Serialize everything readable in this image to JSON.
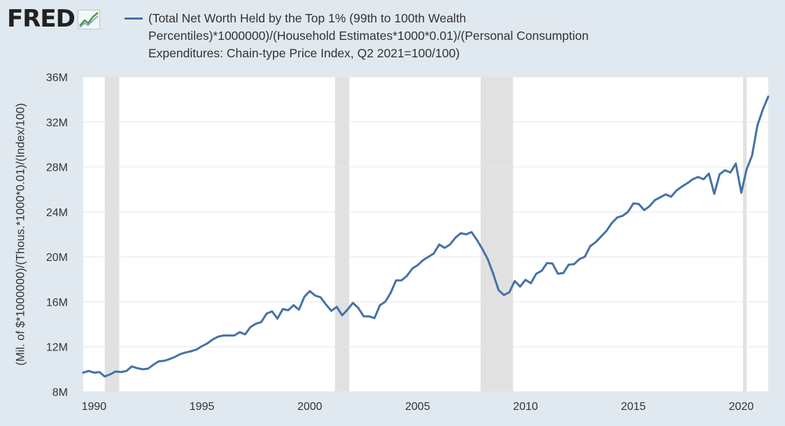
{
  "header": {
    "logo_text": "FRED",
    "legend_line1": "(Total Net Worth Held by the Top 1% (99th to 100th Wealth",
    "legend_line2": "Percentiles)*1000000)/(Household Estimates*1000*0.01)/(Personal Consumption",
    "legend_line3": "Expenditures: Chain-type Price Index, Q2 2021=100/100)"
  },
  "colors": {
    "series": "#4572a7",
    "recession": "#e1e1e1",
    "background": "#e1e9f0",
    "plot": "#ffffff"
  },
  "chart_data": {
    "type": "line",
    "title": "(Total Net Worth Held by the Top 1% (99th to 100th Wealth Percentiles)*1000000)/(Household Estimates*1000*0.01)/(Personal Consumption Expenditures: Chain-type Price Index, Q2 2021=100/100)",
    "xlabel": "",
    "ylabel": "(Mil. of $*1000000)/(Thous.*1000*0.01)/(Index/100)",
    "xlim": [
      1989.5,
      2021.25
    ],
    "ylim": [
      8,
      36
    ],
    "yticks": [
      8,
      12,
      16,
      20,
      24,
      28,
      32,
      36
    ],
    "ytick_labels": [
      "8M",
      "12M",
      "16M",
      "20M",
      "24M",
      "28M",
      "32M",
      "36M"
    ],
    "xticks": [
      1990,
      1995,
      2000,
      2005,
      2010,
      2015,
      2020
    ],
    "xtick_labels": [
      "1990",
      "1995",
      "2000",
      "2005",
      "2010",
      "2015",
      "2020"
    ],
    "recessions": [
      [
        1990.5,
        1991.17
      ],
      [
        2001.17,
        2001.83
      ],
      [
        2007.92,
        2009.42
      ],
      [
        2020.08,
        2020.25
      ]
    ],
    "series": [
      {
        "name": "(Total Net Worth Held by the Top 1% (99th to 100th Wealth Percentiles)*1000000)/(Household Estimates*1000*0.01)/(Personal Consumption Expenditures: Chain-type Price Index, Q2 2021=100/100)",
        "x": [
          1989.5,
          1989.75,
          1990,
          1990.25,
          1990.5,
          1990.75,
          1991,
          1991.25,
          1991.5,
          1991.75,
          1992,
          1992.25,
          1992.5,
          1992.75,
          1993,
          1993.25,
          1993.5,
          1993.75,
          1994,
          1994.25,
          1994.5,
          1994.75,
          1995,
          1995.25,
          1995.5,
          1995.75,
          1996,
          1996.25,
          1996.5,
          1996.75,
          1997,
          1997.25,
          1997.5,
          1997.75,
          1998,
          1998.25,
          1998.5,
          1998.75,
          1999,
          1999.25,
          1999.5,
          1999.75,
          2000,
          2000.25,
          2000.5,
          2000.75,
          2001,
          2001.25,
          2001.5,
          2001.75,
          2002,
          2002.25,
          2002.5,
          2002.75,
          2003,
          2003.25,
          2003.5,
          2003.75,
          2004,
          2004.25,
          2004.5,
          2004.75,
          2005,
          2005.25,
          2005.5,
          2005.75,
          2006,
          2006.25,
          2006.5,
          2006.75,
          2007,
          2007.25,
          2007.5,
          2007.75,
          2008,
          2008.25,
          2008.5,
          2008.75,
          2009,
          2009.25,
          2009.5,
          2009.75,
          2010,
          2010.25,
          2010.5,
          2010.75,
          2011,
          2011.25,
          2011.5,
          2011.75,
          2012,
          2012.25,
          2012.5,
          2012.75,
          2013,
          2013.25,
          2013.5,
          2013.75,
          2014,
          2014.25,
          2014.5,
          2014.75,
          2015,
          2015.25,
          2015.5,
          2015.75,
          2016,
          2016.25,
          2016.5,
          2016.75,
          2017,
          2017.25,
          2017.5,
          2017.75,
          2018,
          2018.25,
          2018.5,
          2018.75,
          2019,
          2019.25,
          2019.5,
          2019.75,
          2020,
          2020.25,
          2020.5,
          2020.75,
          2021,
          2021.25
        ],
        "values": [
          9.7,
          9.85,
          9.7,
          9.75,
          9.35,
          9.55,
          9.8,
          9.75,
          9.85,
          10.25,
          10.1,
          10.0,
          10.05,
          10.4,
          10.7,
          10.75,
          10.9,
          11.1,
          11.35,
          11.5,
          11.6,
          11.75,
          12.05,
          12.3,
          12.65,
          12.9,
          13.0,
          13.0,
          13.0,
          13.3,
          13.1,
          13.75,
          14.05,
          14.2,
          14.95,
          15.15,
          14.5,
          15.35,
          15.25,
          15.7,
          15.3,
          16.45,
          16.95,
          16.55,
          16.4,
          15.75,
          15.2,
          15.55,
          14.8,
          15.3,
          15.9,
          15.45,
          14.7,
          14.7,
          14.55,
          15.7,
          16.0,
          16.8,
          17.9,
          17.9,
          18.3,
          18.95,
          19.25,
          19.7,
          20.0,
          20.3,
          21.1,
          20.8,
          21.1,
          21.7,
          22.1,
          22.0,
          22.2,
          21.5,
          20.7,
          19.8,
          18.5,
          17.05,
          16.6,
          16.85,
          17.85,
          17.35,
          17.95,
          17.65,
          18.5,
          18.75,
          19.45,
          19.4,
          18.5,
          18.55,
          19.3,
          19.35,
          19.8,
          20.0,
          20.95,
          21.3,
          21.8,
          22.3,
          23.0,
          23.5,
          23.65,
          24.0,
          24.75,
          24.7,
          24.15,
          24.5,
          25.05,
          25.3,
          25.55,
          25.35,
          25.9,
          26.25,
          26.55,
          26.9,
          27.1,
          26.9,
          27.4,
          25.6,
          27.35,
          27.7,
          27.5,
          28.3,
          25.7,
          27.8,
          29.0,
          31.7,
          33.1,
          34.25
        ]
      }
    ]
  }
}
